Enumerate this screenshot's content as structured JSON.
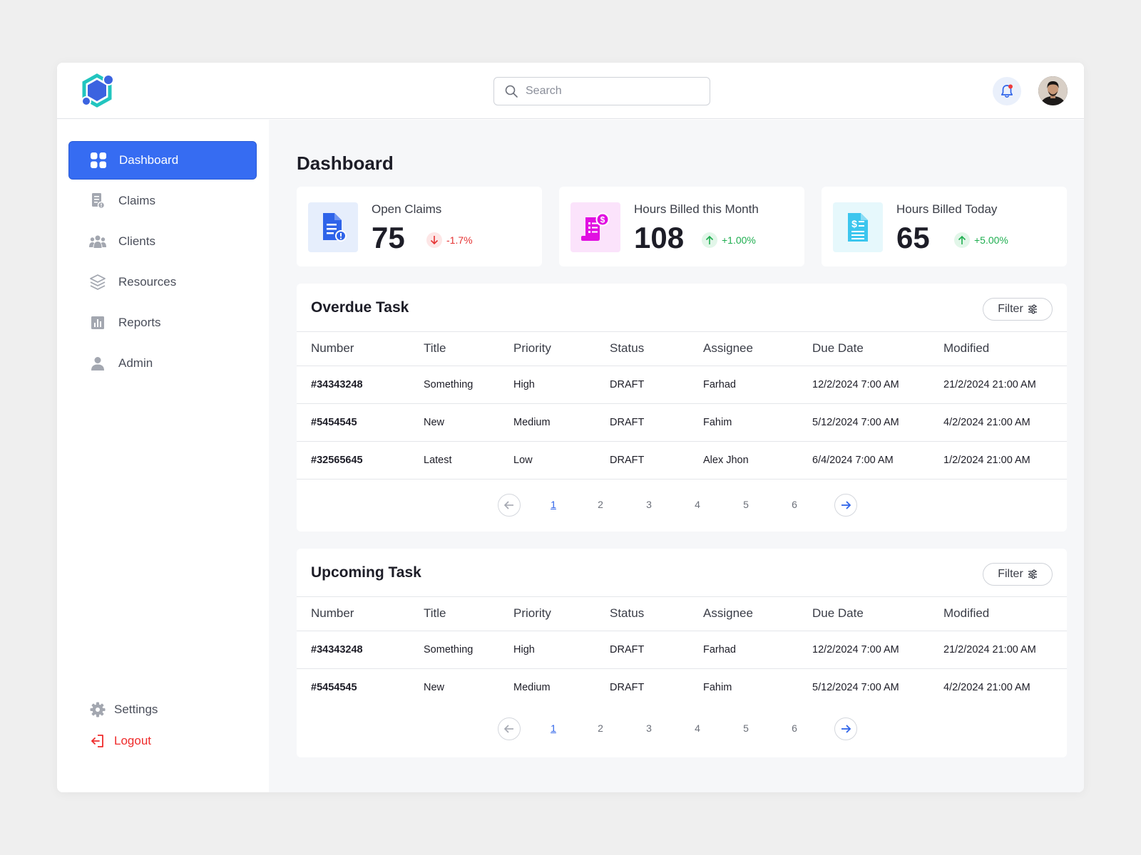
{
  "search": {
    "placeholder": "Search",
    "value": ""
  },
  "sidebar": {
    "items": [
      {
        "label": "Dashboard",
        "icon": "grid-icon",
        "active": true
      },
      {
        "label": "Claims",
        "icon": "claims-icon"
      },
      {
        "label": "Clients",
        "icon": "users-icon"
      },
      {
        "label": "Resources",
        "icon": "layers-icon"
      },
      {
        "label": "Reports",
        "icon": "chart-icon"
      },
      {
        "label": "Admin",
        "icon": "user-icon"
      }
    ],
    "settings_label": "Settings",
    "logout_label": "Logout"
  },
  "page": {
    "title": "Dashboard"
  },
  "stats": [
    {
      "label": "Open Claims",
      "value": "75",
      "change": "-1.7%",
      "trend": "down",
      "icon": "document-alert-icon",
      "icon_bg": "#e6eefc",
      "icon_color": "#2f64e9"
    },
    {
      "label": "Hours Billed this Month",
      "value": "108",
      "change": "+1.00%",
      "trend": "up",
      "icon": "invoice-dollar-icon",
      "icon_bg": "#fbe3fb",
      "icon_color": "#e10fe1"
    },
    {
      "label": "Hours Billed Today",
      "value": "65",
      "change": "+5.00%",
      "trend": "up",
      "icon": "document-dollar-icon",
      "icon_bg": "#e6f8fc",
      "icon_color": "#3cc6ee"
    }
  ],
  "columns": [
    "Number",
    "Title",
    "Priority",
    "Status",
    "Assignee",
    "Due Date",
    "Modified"
  ],
  "overdue": {
    "title": "Overdue Task",
    "filter_label": "Filter",
    "rows": [
      [
        "#34343248",
        "Something",
        "High",
        "DRAFT",
        "Farhad",
        "12/2/2024 7:00 AM",
        "21/2/2024 21:00 AM"
      ],
      [
        "#5454545",
        "New",
        "Medium",
        "DRAFT",
        "Fahim",
        "5/12/2024 7:00 AM",
        "4/2/2024 21:00 AM"
      ],
      [
        "#32565645",
        "Latest",
        "Low",
        "DRAFT",
        "Alex Jhon",
        "6/4/2024 7:00 AM",
        "1/2/2024 21:00 AM"
      ]
    ],
    "pages": [
      "1",
      "2",
      "3",
      "4",
      "5",
      "6"
    ],
    "current_page": "1"
  },
  "upcoming": {
    "title": "Upcoming Task",
    "filter_label": "Filter",
    "rows": [
      [
        "#34343248",
        "Something",
        "High",
        "DRAFT",
        "Farhad",
        "12/2/2024 7:00 AM",
        "21/2/2024 21:00 AM"
      ],
      [
        "#5454545",
        "New",
        "Medium",
        "DRAFT",
        "Fahim",
        "5/12/2024 7:00 AM",
        "4/2/2024 21:00 AM"
      ]
    ],
    "pages": [
      "1",
      "2",
      "3",
      "4",
      "5",
      "6"
    ],
    "current_page": "1"
  },
  "colors": {
    "accent": "#366cf2",
    "danger": "#ef2b2b",
    "success": "#1fae50"
  }
}
